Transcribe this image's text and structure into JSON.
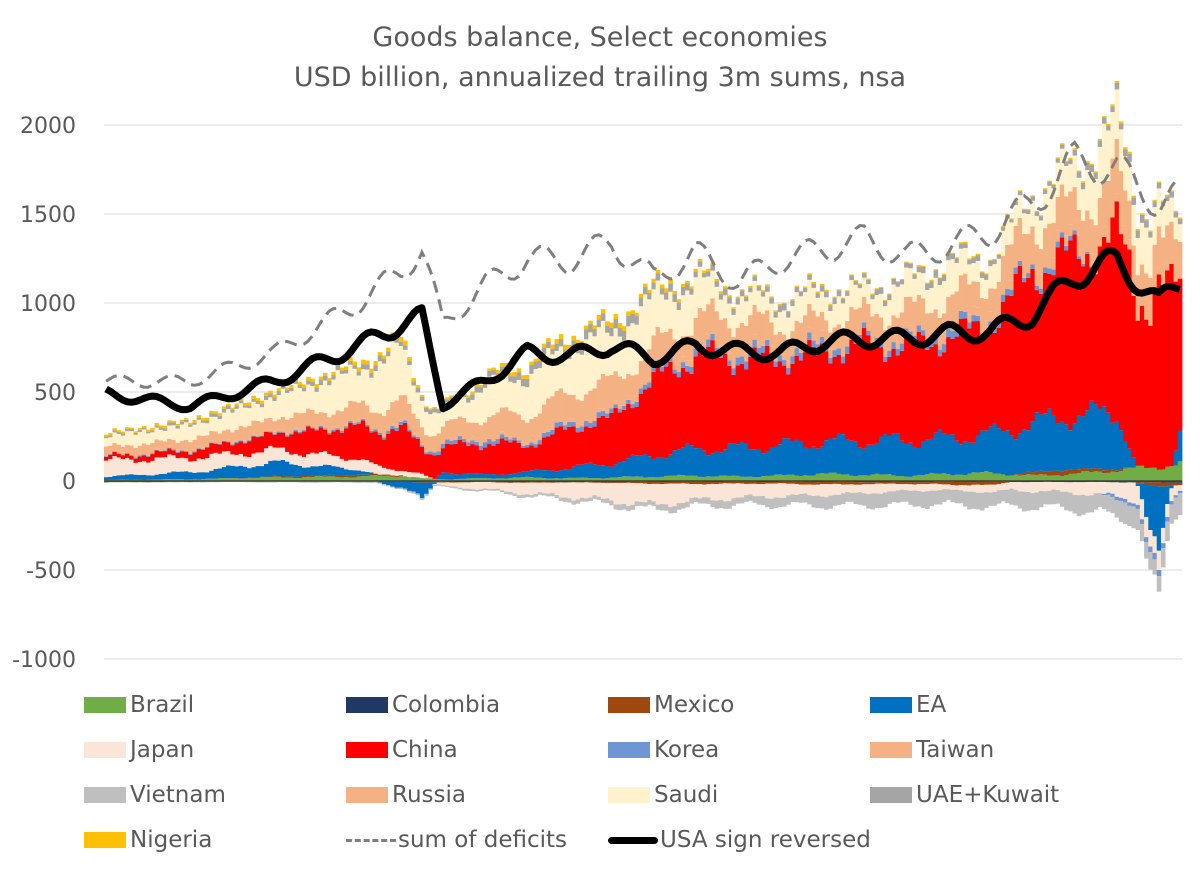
{
  "chart_data": {
    "type": "area",
    "stacked": true,
    "title": "Goods balance, Select economies",
    "subtitle": "USD billion, annualized trailing 3m sums, nsa",
    "xlabel": "",
    "ylabel": "",
    "ylim": [
      -1000,
      2000
    ],
    "yticks": [
      2000,
      1500,
      1000,
      500,
      0,
      -500,
      -1000
    ],
    "ytick_labels": [
      "2000",
      "1500",
      "1000",
      "500",
      "0",
      "-500",
      "-1000"
    ],
    "grid": true,
    "legend_position": "bottom",
    "x_note": "monthly observations, approx. 2002-2023 (no x tick labels shown)",
    "x_anchor_index": [
      0,
      20,
      40,
      60,
      70,
      75,
      80,
      90,
      100,
      110,
      120,
      130,
      140,
      150,
      160,
      170,
      180,
      190,
      200,
      210,
      220,
      230,
      240,
      250,
      255
    ],
    "x_count": 256,
    "series": [
      {
        "name": "Brazil",
        "color": "#70AD47",
        "kind": "stack",
        "values": [
          5,
          10,
          20,
          25,
          30,
          15,
          10,
          15,
          20,
          15,
          20,
          25,
          30,
          25,
          30,
          40,
          35,
          30,
          40,
          45,
          30,
          40,
          60,
          80,
          95
        ]
      },
      {
        "name": "Colombia",
        "color": "#1F3864",
        "kind": "stack",
        "values": [
          -2,
          -2,
          -3,
          -3,
          -4,
          -5,
          -5,
          -5,
          -6,
          -6,
          -6,
          -5,
          -5,
          -5,
          -5,
          -5,
          -6,
          -6,
          -5,
          -5,
          -6,
          -6,
          -7,
          -8,
          -8
        ]
      },
      {
        "name": "Mexico",
        "color": "#9E480E",
        "kind": "stack",
        "values": [
          -5,
          -3,
          5,
          10,
          5,
          -5,
          -3,
          -2,
          -5,
          -2,
          -5,
          -10,
          -12,
          -10,
          -10,
          -15,
          -12,
          -10,
          -15,
          -20,
          20,
          25,
          10,
          -20,
          -15
        ]
      },
      {
        "name": "EA",
        "color": "#0070C0",
        "kind": "stack",
        "values": [
          20,
          40,
          80,
          30,
          -40,
          -80,
          40,
          20,
          30,
          60,
          80,
          120,
          150,
          160,
          170,
          180,
          190,
          200,
          200,
          220,
          280,
          300,
          320,
          -350,
          200
        ]
      },
      {
        "name": "Japan",
        "color": "#FBE5D6",
        "kind": "stack",
        "values": [
          90,
          80,
          70,
          60,
          30,
          20,
          -20,
          -40,
          -60,
          -80,
          -100,
          -120,
          -90,
          -80,
          -70,
          -60,
          -50,
          -40,
          -30,
          -40,
          -50,
          -60,
          -80,
          -120,
          -30
        ]
      },
      {
        "name": "China",
        "color": "#FF0000",
        "kind": "stack",
        "values": [
          20,
          40,
          90,
          180,
          230,
          160,
          140,
          180,
          150,
          220,
          250,
          420,
          520,
          500,
          480,
          500,
          540,
          520,
          560,
          620,
          850,
          900,
          1000,
          1000,
          850
        ]
      },
      {
        "name": "Korea",
        "color": "#6F96D4",
        "kind": "stack",
        "values": [
          5,
          5,
          5,
          10,
          15,
          10,
          20,
          25,
          15,
          30,
          25,
          25,
          35,
          40,
          35,
          40,
          30,
          35,
          40,
          35,
          30,
          25,
          -20,
          -30,
          -15
        ]
      },
      {
        "name": "Taiwan",
        "color": "#F4B183",
        "kind": "stack",
        "values": [
          10,
          10,
          12,
          14,
          15,
          10,
          15,
          18,
          15,
          20,
          20,
          25,
          30,
          35,
          35,
          40,
          40,
          40,
          45,
          50,
          60,
          70,
          60,
          50,
          45
        ]
      },
      {
        "name": "Vietnam",
        "color": "#BFBFBF",
        "kind": "stack",
        "values": [
          -2,
          -3,
          -5,
          -6,
          -8,
          -10,
          -8,
          -10,
          -15,
          -20,
          -25,
          -30,
          -35,
          -40,
          -50,
          -60,
          -70,
          -80,
          -80,
          -85,
          -90,
          -95,
          -100,
          -110,
          -100
        ]
      },
      {
        "name": "Russia",
        "color": "#F4B183",
        "kind": "stack",
        "values": [
          40,
          50,
          70,
          90,
          120,
          100,
          80,
          110,
          140,
          150,
          160,
          140,
          150,
          160,
          120,
          110,
          100,
          130,
          140,
          160,
          180,
          180,
          260,
          200,
          170
        ]
      },
      {
        "name": "Saudi",
        "color": "#FFF2CC",
        "kind": "stack",
        "values": [
          60,
          80,
          120,
          200,
          300,
          150,
          80,
          180,
          220,
          260,
          270,
          260,
          200,
          120,
          120,
          140,
          120,
          150,
          170,
          110,
          150,
          200,
          280,
          180,
          130
        ]
      },
      {
        "name": "UAE+Kuwait",
        "color": "#A5A5A5",
        "kind": "stack",
        "values": [
          10,
          15,
          20,
          25,
          30,
          20,
          20,
          30,
          40,
          45,
          50,
          45,
          35,
          30,
          30,
          30,
          25,
          30,
          35,
          25,
          20,
          30,
          40,
          35,
          30
        ]
      },
      {
        "name": "Nigeria",
        "color": "#FFC000",
        "kind": "stack",
        "values": [
          10,
          12,
          15,
          20,
          25,
          10,
          10,
          15,
          20,
          25,
          25,
          20,
          15,
          10,
          8,
          8,
          6,
          6,
          8,
          6,
          5,
          8,
          10,
          8,
          6
        ]
      },
      {
        "name": "sum of deficits",
        "color": "#7F7F7F",
        "kind": "dashed-line",
        "values": [
          560,
          560,
          720,
          1000,
          1180,
          1300,
          880,
          1100,
          1250,
          1240,
          1340,
          1140,
          1280,
          1120,
          1240,
          1300,
          1360,
          1260,
          1320,
          1400,
          1560,
          1800,
          1750,
          1560,
          1600
        ]
      },
      {
        "name": "USA sign reversed",
        "color": "#000000",
        "kind": "thick-line",
        "values": [
          490,
          420,
          560,
          760,
          880,
          920,
          430,
          560,
          720,
          700,
          760,
          690,
          760,
          730,
          720,
          780,
          800,
          800,
          830,
          840,
          930,
          1150,
          1240,
          1000,
          1120
        ]
      }
    ]
  }
}
